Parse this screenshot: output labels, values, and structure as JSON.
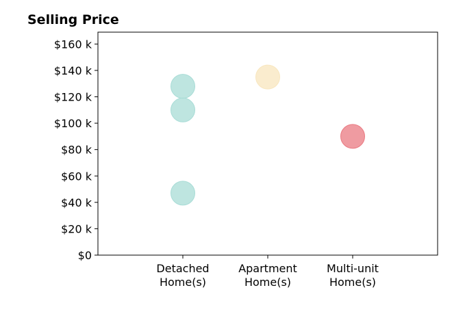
{
  "chart_data": {
    "type": "scatter",
    "title": "Selling Price",
    "xlabel": "",
    "ylabel": "",
    "categories": [
      [
        "Detached",
        "Home(s)"
      ],
      [
        "Apartment",
        "Home(s)"
      ],
      [
        "Multi-unit",
        "Home(s)"
      ]
    ],
    "y_ticks": [
      0,
      20000,
      40000,
      60000,
      80000,
      100000,
      120000,
      140000,
      160000
    ],
    "y_tick_labels": [
      "$0",
      "$20 k",
      "$40 k",
      "$60 k",
      "$80 k",
      "$100 k",
      "$120 k",
      "$140 k",
      "$160 k"
    ],
    "ylim": [
      0,
      169000
    ],
    "xlim": [
      -1,
      3
    ],
    "grid": false,
    "points": [
      {
        "category_index": 0,
        "y": 128000,
        "color": "#a8dcd6"
      },
      {
        "category_index": 0,
        "y": 110000,
        "color": "#a8dcd6"
      },
      {
        "category_index": 0,
        "y": 47000,
        "color": "#a8dcd6"
      },
      {
        "category_index": 1,
        "y": 135000,
        "color": "#f8e6be"
      },
      {
        "category_index": 2,
        "y": 90000,
        "color": "#ea7a82"
      }
    ]
  }
}
